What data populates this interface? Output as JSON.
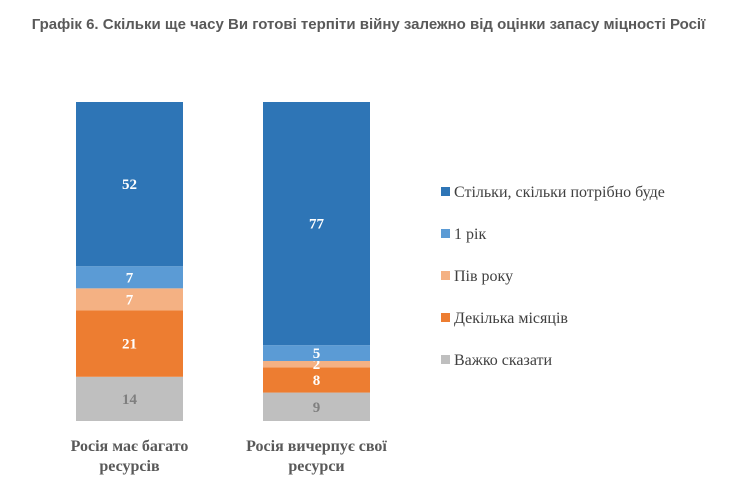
{
  "chart_data": {
    "type": "bar",
    "stacked": true,
    "title": "Графік 6. Скільки ще часу Ви готові терпіти війну залежно від оцінки запасу міцності Росії",
    "categories": [
      [
        "Росія має багато",
        "ресурсів"
      ],
      [
        "Росія вичерпує свої",
        "ресурси"
      ]
    ],
    "series": [
      {
        "name": "Важко сказати",
        "values": [
          14,
          9
        ],
        "color": "#bfbfbf",
        "label_color": "#7f7f7f"
      },
      {
        "name": "Декілька місяців",
        "values": [
          21,
          8
        ],
        "color": "#ed7d31",
        "label_color": "#ffffff"
      },
      {
        "name": "Пів року",
        "values": [
          7,
          2
        ],
        "color": "#f4b183",
        "label_color": "#ffffff"
      },
      {
        "name": "1 рік",
        "values": [
          7,
          5
        ],
        "color": "#5b9bd5",
        "label_color": "#ffffff"
      },
      {
        "name": "Стільки, скільки потрібно буде",
        "values": [
          52,
          77
        ],
        "color": "#2e75b6",
        "label_color": "#ffffff"
      }
    ],
    "ylim": [
      0,
      101
    ],
    "grid": false,
    "legend_position": "right"
  }
}
